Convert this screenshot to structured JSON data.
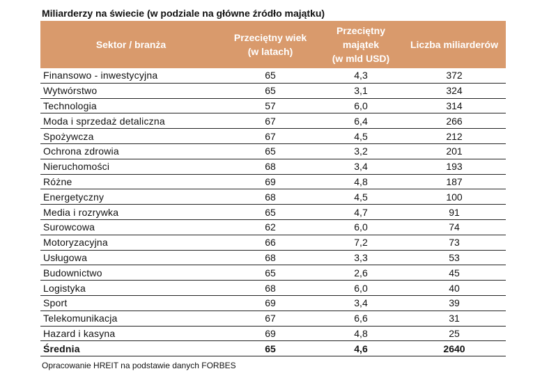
{
  "title": "Miliarderzy na świecie (w podziale na główne źródło majątku)",
  "source": "Opracowanie HREIT na podstawie danych FORBES",
  "colors": {
    "header_bg": "#D99A6C",
    "header_text": "#FFFFFF"
  },
  "chart_data": {
    "type": "table",
    "title": "Miliarderzy na świecie (w podziale na główne źródło majątku)",
    "columns": [
      {
        "line1": "Sektor / branża",
        "line2": "",
        "line3": ""
      },
      {
        "line1": "Przeciętny wiek",
        "line2": "(w latach)",
        "line3": ""
      },
      {
        "line1": "Przeciętny",
        "line2": "majątek",
        "line3": "(w mld USD)"
      },
      {
        "line1": "Liczba miliarderów",
        "line2": "",
        "line3": ""
      }
    ],
    "rows": [
      {
        "sector": "Finansowo - inwestycyjna",
        "age": "65",
        "wealth": "4,3",
        "count": "372"
      },
      {
        "sector": "Wytwórstwo",
        "age": "65",
        "wealth": "3,1",
        "count": "324"
      },
      {
        "sector": "Technologia",
        "age": "57",
        "wealth": "6,0",
        "count": "314"
      },
      {
        "sector": "Moda i sprzedaż detaliczna",
        "age": "67",
        "wealth": "6,4",
        "count": "266"
      },
      {
        "sector": "Spożywcza",
        "age": "67",
        "wealth": "4,5",
        "count": "212"
      },
      {
        "sector": "Ochrona zdrowia",
        "age": "65",
        "wealth": "3,2",
        "count": "201"
      },
      {
        "sector": "Nieruchomości",
        "age": "68",
        "wealth": "3,4",
        "count": "193"
      },
      {
        "sector": "Różne",
        "age": "69",
        "wealth": "4,8",
        "count": "187"
      },
      {
        "sector": "Energetyczny",
        "age": "68",
        "wealth": "4,5",
        "count": "100"
      },
      {
        "sector": "Media i rozrywka",
        "age": "65",
        "wealth": "4,7",
        "count": "91"
      },
      {
        "sector": "Surowcowa",
        "age": "62",
        "wealth": "6,0",
        "count": "74"
      },
      {
        "sector": "Motoryzacyjna",
        "age": "66",
        "wealth": "7,2",
        "count": "73"
      },
      {
        "sector": "Usługowa",
        "age": "68",
        "wealth": "3,3",
        "count": "53"
      },
      {
        "sector": "Budownictwo",
        "age": "65",
        "wealth": "2,6",
        "count": "45"
      },
      {
        "sector": "Logistyka",
        "age": "68",
        "wealth": "6,0",
        "count": "40"
      },
      {
        "sector": "Sport",
        "age": "69",
        "wealth": "3,4",
        "count": "39"
      },
      {
        "sector": "Telekomunikacja",
        "age": "67",
        "wealth": "6,6",
        "count": "31"
      },
      {
        "sector": "Hazard i kasyna",
        "age": "69",
        "wealth": "4,8",
        "count": "25"
      }
    ],
    "average": {
      "sector": "Średnia",
      "age": "65",
      "wealth": "4,6",
      "count": "2640"
    }
  }
}
